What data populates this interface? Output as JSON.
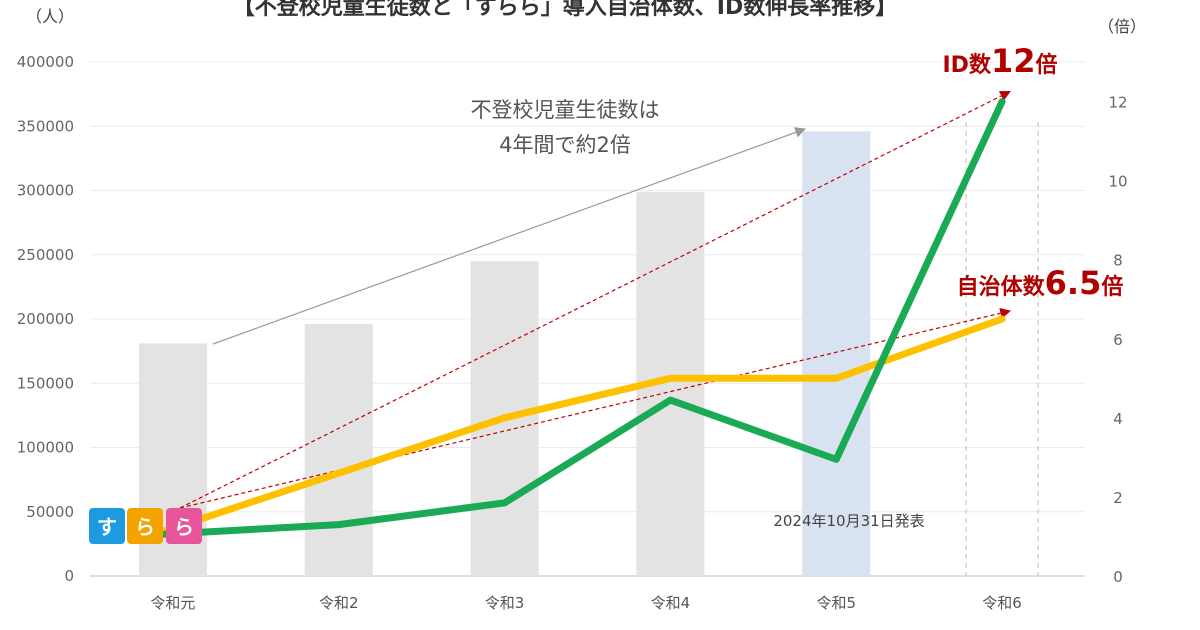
{
  "chart_data": {
    "type": "bar",
    "title": "【不登校児童生徒数と「すらら」導入自治体数、ID数伸長率推移】",
    "categories": [
      "令和元",
      "令和2",
      "令和3",
      "令和4",
      "令和5",
      "令和6"
    ],
    "y_left_unit": "（人）",
    "y_right_unit": "（倍）",
    "ylim_left": [
      0,
      400000
    ],
    "ylim_right": [
      0,
      13
    ],
    "yticks_left": [
      "0",
      "50000",
      "100000",
      "150000",
      "200000",
      "250000",
      "300000",
      "350000",
      "400000"
    ],
    "yticks_right": [
      "0",
      "2",
      "4",
      "6",
      "8",
      "10",
      "12"
    ],
    "grid": true,
    "series": [
      {
        "name": "不登校児童生徒数",
        "type": "bar",
        "axis": "left",
        "values": [
          181000,
          196000,
          245000,
          299000,
          346000,
          null
        ],
        "color": "#e3e3e3",
        "highlight_color": "#d9e2f1",
        "highlight_index": 4
      },
      {
        "name": "ID数",
        "type": "line",
        "axis": "right",
        "values": [
          1.05,
          1.3,
          1.85,
          4.45,
          2.95,
          12.0
        ],
        "color": "#1aaa55"
      },
      {
        "name": "自治体数",
        "type": "line",
        "axis": "right",
        "values": [
          1.1,
          2.6,
          4.0,
          5.0,
          5.0,
          6.5
        ],
        "color": "#ffc000"
      }
    ],
    "annotations": {
      "gray_arrow_text_line1": "不登校児童生徒数は",
      "gray_arrow_text_line2": "4年間で約2倍",
      "id_callout_prefix": "ID数",
      "id_callout_value": "12",
      "id_callout_suffix": "倍",
      "muni_callout_prefix": "自治体数",
      "muni_callout_value": "6.5",
      "muni_callout_suffix": "倍",
      "release_note": "2024年10月31日発表"
    },
    "logo_chars": [
      "す",
      "ら",
      "ら"
    ],
    "logo_colors": [
      "#1e9be0",
      "#f5a300",
      "#e8559a"
    ]
  }
}
